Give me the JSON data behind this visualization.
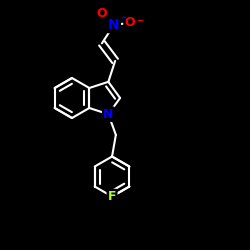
{
  "background_color": "#000000",
  "bond_color": "#ffffff",
  "bond_width": 1.5,
  "atom_colors": {
    "N_indole": "#0000ff",
    "N_nitro": "#0000ff",
    "O": "#ff0000",
    "F": "#adff2f"
  },
  "font_size": 9,
  "fig_size": [
    2.5,
    2.5
  ],
  "dpi": 100
}
